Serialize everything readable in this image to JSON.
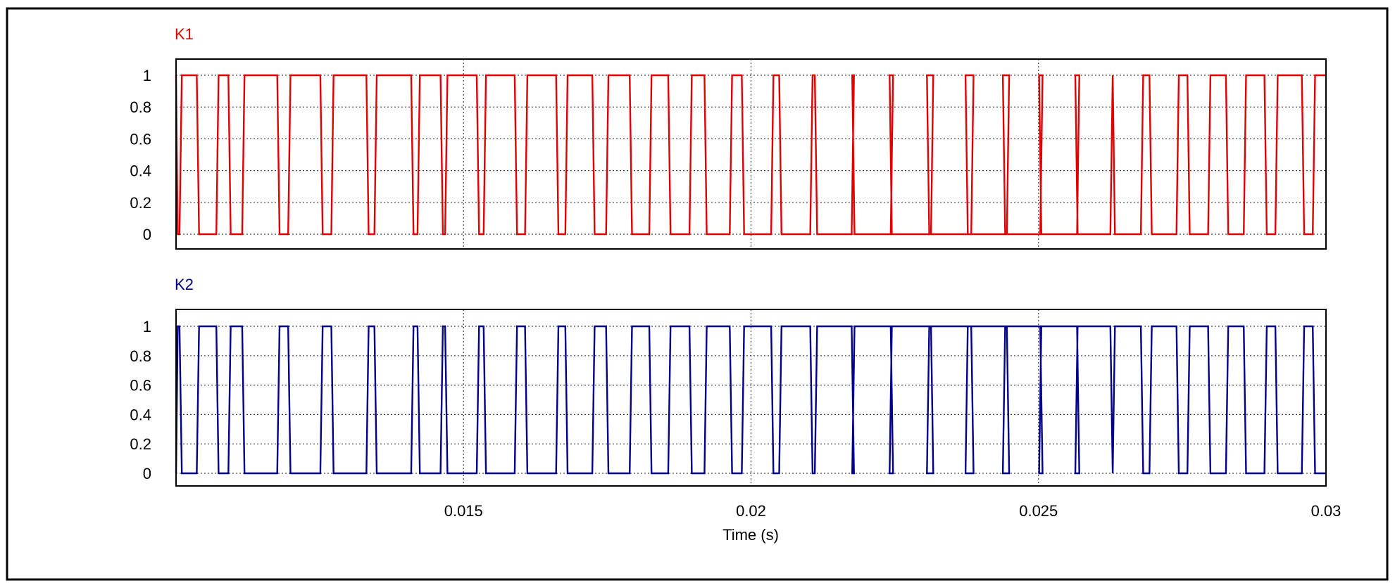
{
  "chart_data": [
    {
      "type": "line",
      "title": "K1",
      "color": "#e00000",
      "ylim": [
        0,
        1
      ],
      "y_ticks": [
        0,
        0.2,
        0.4,
        0.6,
        0.8,
        1
      ],
      "y_tick_labels": [
        "0",
        "0.2",
        "0.4",
        "0.6",
        "0.8",
        "1"
      ],
      "xlim": [
        0.01,
        0.03
      ],
      "grid": true,
      "series": [
        {
          "transitions": [
            [
              0.01003,
              0.01006
            ],
            [
              0.0104,
              0.0107
            ],
            [
              0.01095,
              0.01115
            ],
            [
              0.0118,
              0.01195
            ],
            [
              0.01255,
              0.0127
            ],
            [
              0.01335,
              0.01345
            ],
            [
              0.01413,
              0.0142
            ],
            [
              0.01464,
              0.01468
            ],
            [
              0.01527,
              0.01535
            ],
            [
              0.01593,
              0.01607
            ],
            [
              0.01665,
              0.01677
            ],
            [
              0.01728,
              0.01748
            ],
            [
              0.01793,
              0.01823
            ],
            [
              0.0186,
              0.01893
            ],
            [
              0.01923,
              0.01963
            ],
            [
              0.01988,
              0.02035
            ],
            [
              0.02053,
              0.02103
            ],
            [
              0.02115,
              0.02175
            ],
            [
              0.0218,
              0.02243
            ],
            [
              0.02245,
              0.02313
            ],
            [
              0.0231,
              0.02383
            ],
            [
              0.02377,
              0.02445
            ],
            [
              0.02442,
              0.02503
            ],
            [
              0.02505,
              0.02567
            ],
            [
              0.02568,
              0.02625
            ],
            [
              0.02633,
              0.02678
            ],
            [
              0.02697,
              0.0274
            ],
            [
              0.02763,
              0.02795
            ],
            [
              0.0283,
              0.02857
            ],
            [
              0.02897,
              0.02912
            ],
            [
              0.02962,
              0.02977
            ]
          ],
          "end_level": 1
        }
      ]
    },
    {
      "type": "line",
      "title": "K2",
      "color": "#00008b",
      "ylim": [
        0,
        1
      ],
      "y_ticks": [
        0,
        0.2,
        0.4,
        0.6,
        0.8,
        1
      ],
      "y_tick_labels": [
        "0",
        "0.2",
        "0.4",
        "0.6",
        "0.8",
        "1"
      ],
      "xlim": [
        0.01,
        0.03
      ],
      "xlabel": "Time (s)",
      "x_ticks": [
        0.015,
        0.02,
        0.025,
        0.03
      ],
      "x_tick_labels": [
        "0.015",
        "0.02",
        "0.025",
        "0.03"
      ],
      "grid": true,
      "series": [
        {
          "transitions": [
            [
              0.01006,
              0.01003
            ],
            [
              0.0107,
              0.0104
            ],
            [
              0.01115,
              0.01095
            ],
            [
              0.01195,
              0.0118
            ],
            [
              0.0127,
              0.01255
            ],
            [
              0.01345,
              0.01335
            ],
            [
              0.0142,
              0.01413
            ],
            [
              0.01468,
              0.01464
            ],
            [
              0.01535,
              0.01527
            ],
            [
              0.01607,
              0.01593
            ],
            [
              0.01677,
              0.01665
            ],
            [
              0.01748,
              0.01728
            ],
            [
              0.01823,
              0.01793
            ],
            [
              0.01893,
              0.0186
            ],
            [
              0.01963,
              0.01923
            ],
            [
              0.02035,
              0.01988
            ],
            [
              0.02103,
              0.02053
            ],
            [
              0.02175,
              0.02115
            ],
            [
              0.02243,
              0.0218
            ],
            [
              0.02313,
              0.02245
            ],
            [
              0.02383,
              0.0231
            ],
            [
              0.02445,
              0.02377
            ],
            [
              0.02503,
              0.02442
            ],
            [
              0.02567,
              0.02505
            ],
            [
              0.02625,
              0.02568
            ],
            [
              0.02678,
              0.02633
            ],
            [
              0.0274,
              0.02697
            ],
            [
              0.02795,
              0.02763
            ],
            [
              0.02857,
              0.0283
            ],
            [
              0.02912,
              0.02897
            ],
            [
              0.02977,
              0.02962
            ]
          ],
          "end_level": 0
        }
      ]
    }
  ]
}
